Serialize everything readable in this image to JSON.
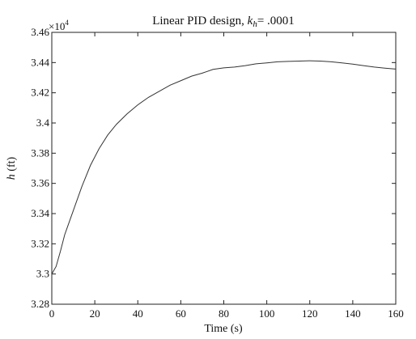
{
  "chart_data": {
    "type": "line",
    "title_prefix": "Linear PID design, ",
    "title_var": "k",
    "title_sub": "h",
    "title_suffix": "= .0001",
    "xlabel": "Time (s)",
    "ylabel_var": "h",
    "ylabel_unit": " (ft)",
    "exponent_base": "×10",
    "exponent_power": "4",
    "xlim": [
      0,
      160
    ],
    "ylim": [
      3.28,
      3.46
    ],
    "x_ticks": [
      0,
      20,
      40,
      60,
      80,
      100,
      120,
      140,
      160
    ],
    "x_tick_labels": [
      "0",
      "20",
      "40",
      "60",
      "80",
      "100",
      "120",
      "140",
      "160"
    ],
    "y_ticks": [
      3.28,
      3.3,
      3.32,
      3.34,
      3.36,
      3.38,
      3.4,
      3.42,
      3.44,
      3.46
    ],
    "y_tick_labels": [
      "3.28",
      "3.3",
      "3.32",
      "3.34",
      "3.36",
      "3.38",
      "3.4",
      "3.42",
      "3.44",
      "3.46"
    ],
    "grid": false,
    "series": [
      {
        "color": "#333333",
        "x": [
          0,
          2,
          4,
          6,
          8,
          10,
          14,
          18,
          22,
          26,
          30,
          35,
          40,
          45,
          50,
          55,
          60,
          65,
          70,
          75,
          80,
          85,
          90,
          95,
          100,
          105,
          110,
          115,
          120,
          125,
          130,
          135,
          140,
          145,
          150,
          155,
          160
        ],
        "y": [
          3.3,
          3.305,
          3.315,
          3.326,
          3.334,
          3.342,
          3.358,
          3.372,
          3.383,
          3.392,
          3.399,
          3.406,
          3.412,
          3.417,
          3.421,
          3.425,
          3.428,
          3.431,
          3.433,
          3.4355,
          3.4365,
          3.437,
          3.438,
          3.4392,
          3.4398,
          3.4405,
          3.4408,
          3.441,
          3.4412,
          3.441,
          3.4405,
          3.4398,
          3.439,
          3.438,
          3.437,
          3.4363,
          3.4357
        ]
      }
    ]
  }
}
